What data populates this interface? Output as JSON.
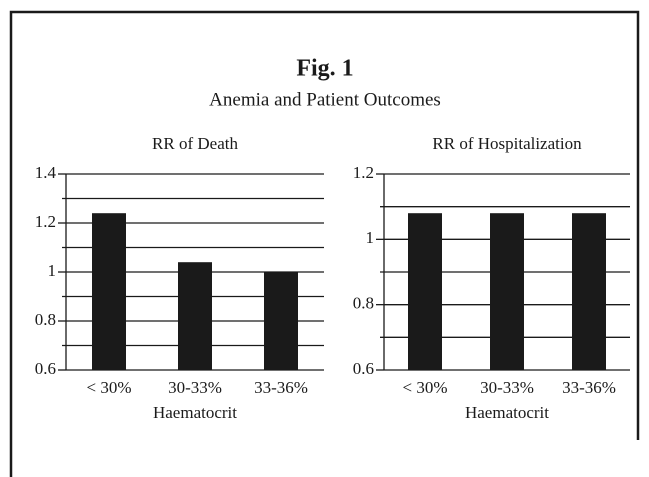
{
  "figure": {
    "title": "Fig. 1",
    "subtitle": "Anemia and Patient Outcomes"
  },
  "chart_data": [
    {
      "type": "bar",
      "title": "RR of Death",
      "x_label": "Haematocrit",
      "categories": [
        "< 30%",
        "30-33%",
        "33-36%"
      ],
      "values": [
        1.24,
        1.04,
        1.0
      ],
      "color": "#1a1a1a",
      "ylim": [
        0.6,
        1.4
      ],
      "yticks": [
        0.6,
        0.8,
        1.0,
        1.2,
        1.4
      ],
      "minor_yticks": [
        0.7,
        0.9,
        1.1,
        1.3
      ],
      "grid": true
    },
    {
      "type": "bar",
      "title": "RR of Hospitalization",
      "x_label": "Haematocrit",
      "categories": [
        "< 30%",
        "30-33%",
        "33-36%"
      ],
      "values": [
        1.08,
        1.08,
        1.08
      ],
      "color": "#1a1a1a",
      "ylim": [
        0.6,
        1.2
      ],
      "yticks": [
        0.6,
        0.8,
        1.0,
        1.2
      ],
      "minor_yticks": [
        0.7,
        0.9,
        1.1
      ],
      "grid": true
    }
  ]
}
